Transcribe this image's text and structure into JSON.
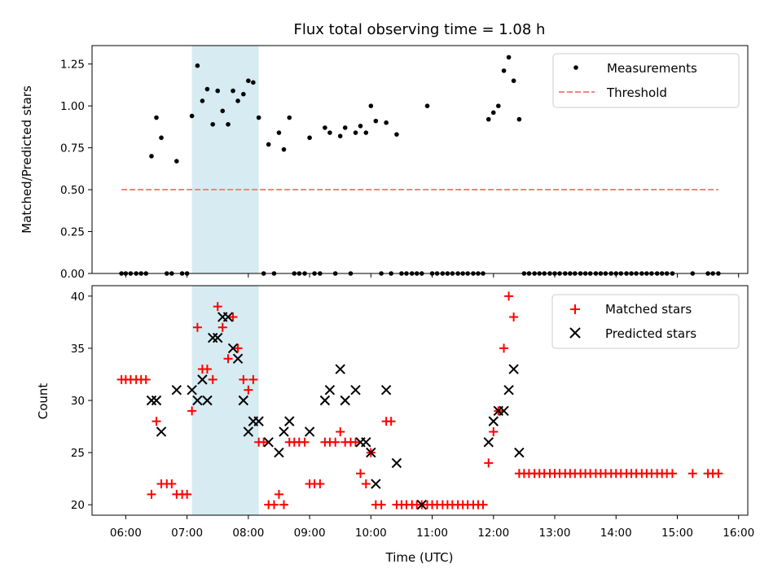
{
  "chart_data": [
    {
      "type": "scatter",
      "title": "Flux total observing time = 1.08 h",
      "xlabel": "",
      "ylabel": "Matched/Predicted stars",
      "xlim": [
        5.45,
        16.15
      ],
      "ylim": [
        0.0,
        1.36
      ],
      "yticks": [
        "0.00",
        "0.25",
        "0.50",
        "0.75",
        "1.00",
        "1.25"
      ],
      "shaded_interval": [
        7.08,
        8.17
      ],
      "grid": false,
      "legend_position": "top-right",
      "series": [
        {
          "name": "Measurements",
          "marker": "dot",
          "color": "#000000",
          "x": [
            5.93,
            6.0,
            6.08,
            6.17,
            6.25,
            6.33,
            6.42,
            6.5,
            6.58,
            6.67,
            6.75,
            6.83,
            6.92,
            7.0,
            7.08,
            7.17,
            7.25,
            7.33,
            7.42,
            7.5,
            7.58,
            7.67,
            7.75,
            7.83,
            7.92,
            8.0,
            8.08,
            8.17,
            8.25,
            8.33,
            8.42,
            8.5,
            8.58,
            8.67,
            8.75,
            8.83,
            8.92,
            9.0,
            9.08,
            9.17,
            9.25,
            9.33,
            9.42,
            9.5,
            9.58,
            9.67,
            9.75,
            9.83,
            9.92,
            10.0,
            10.08,
            10.17,
            10.25,
            10.33,
            10.42,
            10.5,
            10.58,
            10.67,
            10.75,
            10.83,
            10.92,
            11.0,
            11.08,
            11.17,
            11.25,
            11.33,
            11.42,
            11.5,
            11.58,
            11.67,
            11.75,
            11.83,
            11.92,
            12.0,
            12.08,
            12.17,
            12.25,
            12.33,
            12.42,
            12.5,
            12.58,
            12.67,
            12.75,
            12.83,
            12.92,
            13.0,
            13.08,
            13.17,
            13.25,
            13.33,
            13.42,
            13.5,
            13.58,
            13.67,
            13.75,
            13.83,
            13.92,
            14.0,
            14.08,
            14.17,
            14.25,
            14.33,
            14.42,
            14.5,
            14.58,
            14.67,
            14.75,
            14.83,
            14.92,
            15.25,
            15.5,
            15.58,
            15.67
          ],
          "y": [
            0.0,
            0.0,
            0.0,
            0.0,
            0.0,
            0.0,
            0.7,
            0.93,
            0.81,
            0.0,
            0.0,
            0.67,
            0.0,
            0.0,
            0.94,
            1.24,
            1.03,
            1.1,
            0.89,
            1.09,
            0.97,
            0.89,
            1.09,
            1.03,
            1.07,
            1.15,
            1.14,
            0.93,
            0.0,
            0.77,
            0.0,
            0.84,
            0.74,
            0.93,
            0.0,
            0.0,
            0.0,
            0.81,
            0.0,
            0.0,
            0.87,
            0.84,
            0.0,
            0.82,
            0.87,
            0.0,
            0.84,
            0.88,
            0.84,
            1.0,
            0.91,
            0.0,
            0.9,
            0.0,
            0.83,
            0.0,
            0.0,
            0.0,
            0.0,
            0.0,
            1.0,
            0.0,
            0.0,
            0.0,
            0.0,
            0.0,
            0.0,
            0.0,
            0.0,
            0.0,
            0.0,
            0.0,
            0.92,
            0.96,
            1.0,
            1.21,
            1.29,
            1.15,
            0.92,
            0.0,
            0.0,
            0.0,
            0.0,
            0.0,
            0.0,
            0.0,
            0.0,
            0.0,
            0.0,
            0.0,
            0.0,
            0.0,
            0.0,
            0.0,
            0.0,
            0.0,
            0.0,
            0.0,
            0.0,
            0.0,
            0.0,
            0.0,
            0.0,
            0.0,
            0.0,
            0.0,
            0.0,
            0.0,
            0.0,
            0.0,
            0.0,
            0.0,
            0.0
          ]
        },
        {
          "name": "Threshold",
          "marker": "dashed-line",
          "color": "#ff7f7f",
          "x": [
            5.93,
            15.67
          ],
          "y": [
            0.5,
            0.5
          ]
        }
      ]
    },
    {
      "type": "scatter",
      "title": "",
      "xlabel": "Time (UTC)",
      "ylabel": "Count",
      "xlim": [
        5.45,
        16.15
      ],
      "ylim": [
        19.0,
        41.0
      ],
      "yticks": [
        "20",
        "25",
        "30",
        "35",
        "40"
      ],
      "xticks": [
        "06:00",
        "07:00",
        "08:00",
        "09:00",
        "10:00",
        "11:00",
        "12:00",
        "13:00",
        "14:00",
        "15:00",
        "16:00"
      ],
      "xtick_values": [
        6,
        7,
        8,
        9,
        10,
        11,
        12,
        13,
        14,
        15,
        16
      ],
      "shaded_interval": [
        7.08,
        8.17
      ],
      "grid": false,
      "legend_position": "top-right",
      "series": [
        {
          "name": "Matched stars",
          "marker": "plus",
          "color": "#ff0000",
          "x": [
            5.93,
            6.0,
            6.08,
            6.17,
            6.25,
            6.33,
            6.42,
            6.5,
            6.58,
            6.67,
            6.75,
            6.83,
            6.92,
            7.0,
            7.08,
            7.17,
            7.25,
            7.33,
            7.42,
            7.5,
            7.58,
            7.67,
            7.75,
            7.83,
            7.92,
            8.0,
            8.08,
            8.17,
            8.25,
            8.33,
            8.42,
            8.5,
            8.58,
            8.67,
            8.75,
            8.83,
            8.92,
            9.0,
            9.08,
            9.17,
            9.25,
            9.33,
            9.42,
            9.5,
            9.58,
            9.67,
            9.75,
            9.83,
            9.92,
            10.0,
            10.08,
            10.17,
            10.25,
            10.33,
            10.42,
            10.5,
            10.58,
            10.67,
            10.75,
            10.83,
            10.92,
            11.0,
            11.08,
            11.17,
            11.25,
            11.33,
            11.42,
            11.5,
            11.58,
            11.67,
            11.75,
            11.83,
            11.92,
            12.0,
            12.08,
            12.17,
            12.25,
            12.33,
            12.42,
            12.5,
            12.58,
            12.67,
            12.75,
            12.83,
            12.92,
            13.0,
            13.08,
            13.17,
            13.25,
            13.33,
            13.42,
            13.5,
            13.58,
            13.67,
            13.75,
            13.83,
            13.92,
            14.0,
            14.08,
            14.17,
            14.25,
            14.33,
            14.42,
            14.5,
            14.58,
            14.67,
            14.75,
            14.83,
            14.92,
            15.25,
            15.5,
            15.58,
            15.67
          ],
          "y": [
            32,
            32,
            32,
            32,
            32,
            32,
            21,
            28,
            22,
            22,
            22,
            21,
            21,
            21,
            29,
            37,
            33,
            33,
            32,
            39,
            37,
            34,
            38,
            35,
            32,
            31,
            32,
            26,
            26,
            20,
            20,
            21,
            20,
            26,
            26,
            26,
            26,
            22,
            22,
            22,
            26,
            26,
            26,
            27,
            26,
            26,
            26,
            23,
            22,
            25,
            20,
            20,
            28,
            28,
            20,
            20,
            20,
            20,
            20,
            20,
            20,
            20,
            20,
            20,
            20,
            20,
            20,
            20,
            20,
            20,
            20,
            20,
            24,
            27,
            29,
            35,
            40,
            38,
            23,
            23,
            23,
            23,
            23,
            23,
            23,
            23,
            23,
            23,
            23,
            23,
            23,
            23,
            23,
            23,
            23,
            23,
            23,
            23,
            23,
            23,
            23,
            23,
            23,
            23,
            23,
            23,
            23,
            23,
            23,
            23,
            23,
            23,
            23
          ]
        },
        {
          "name": "Predicted stars",
          "marker": "x",
          "color": "#000000",
          "x": [
            6.42,
            6.5,
            6.58,
            6.83,
            7.08,
            7.17,
            7.25,
            7.33,
            7.42,
            7.5,
            7.58,
            7.67,
            7.75,
            7.83,
            7.92,
            8.0,
            8.08,
            8.17,
            8.33,
            8.5,
            8.58,
            8.67,
            9.0,
            9.25,
            9.33,
            9.5,
            9.58,
            9.75,
            9.83,
            9.92,
            10.0,
            10.08,
            10.25,
            10.42,
            10.83,
            11.92,
            12.0,
            12.08,
            12.17,
            12.25,
            12.33,
            12.42
          ],
          "y": [
            30,
            30,
            27,
            31,
            31,
            30,
            32,
            30,
            36,
            36,
            38,
            38,
            35,
            34,
            30,
            27,
            28,
            28,
            26,
            25,
            27,
            28,
            27,
            30,
            31,
            33,
            30,
            31,
            26,
            26,
            25,
            22,
            31,
            24,
            20,
            26,
            28,
            29,
            29,
            31,
            33,
            25
          ]
        }
      ]
    }
  ]
}
